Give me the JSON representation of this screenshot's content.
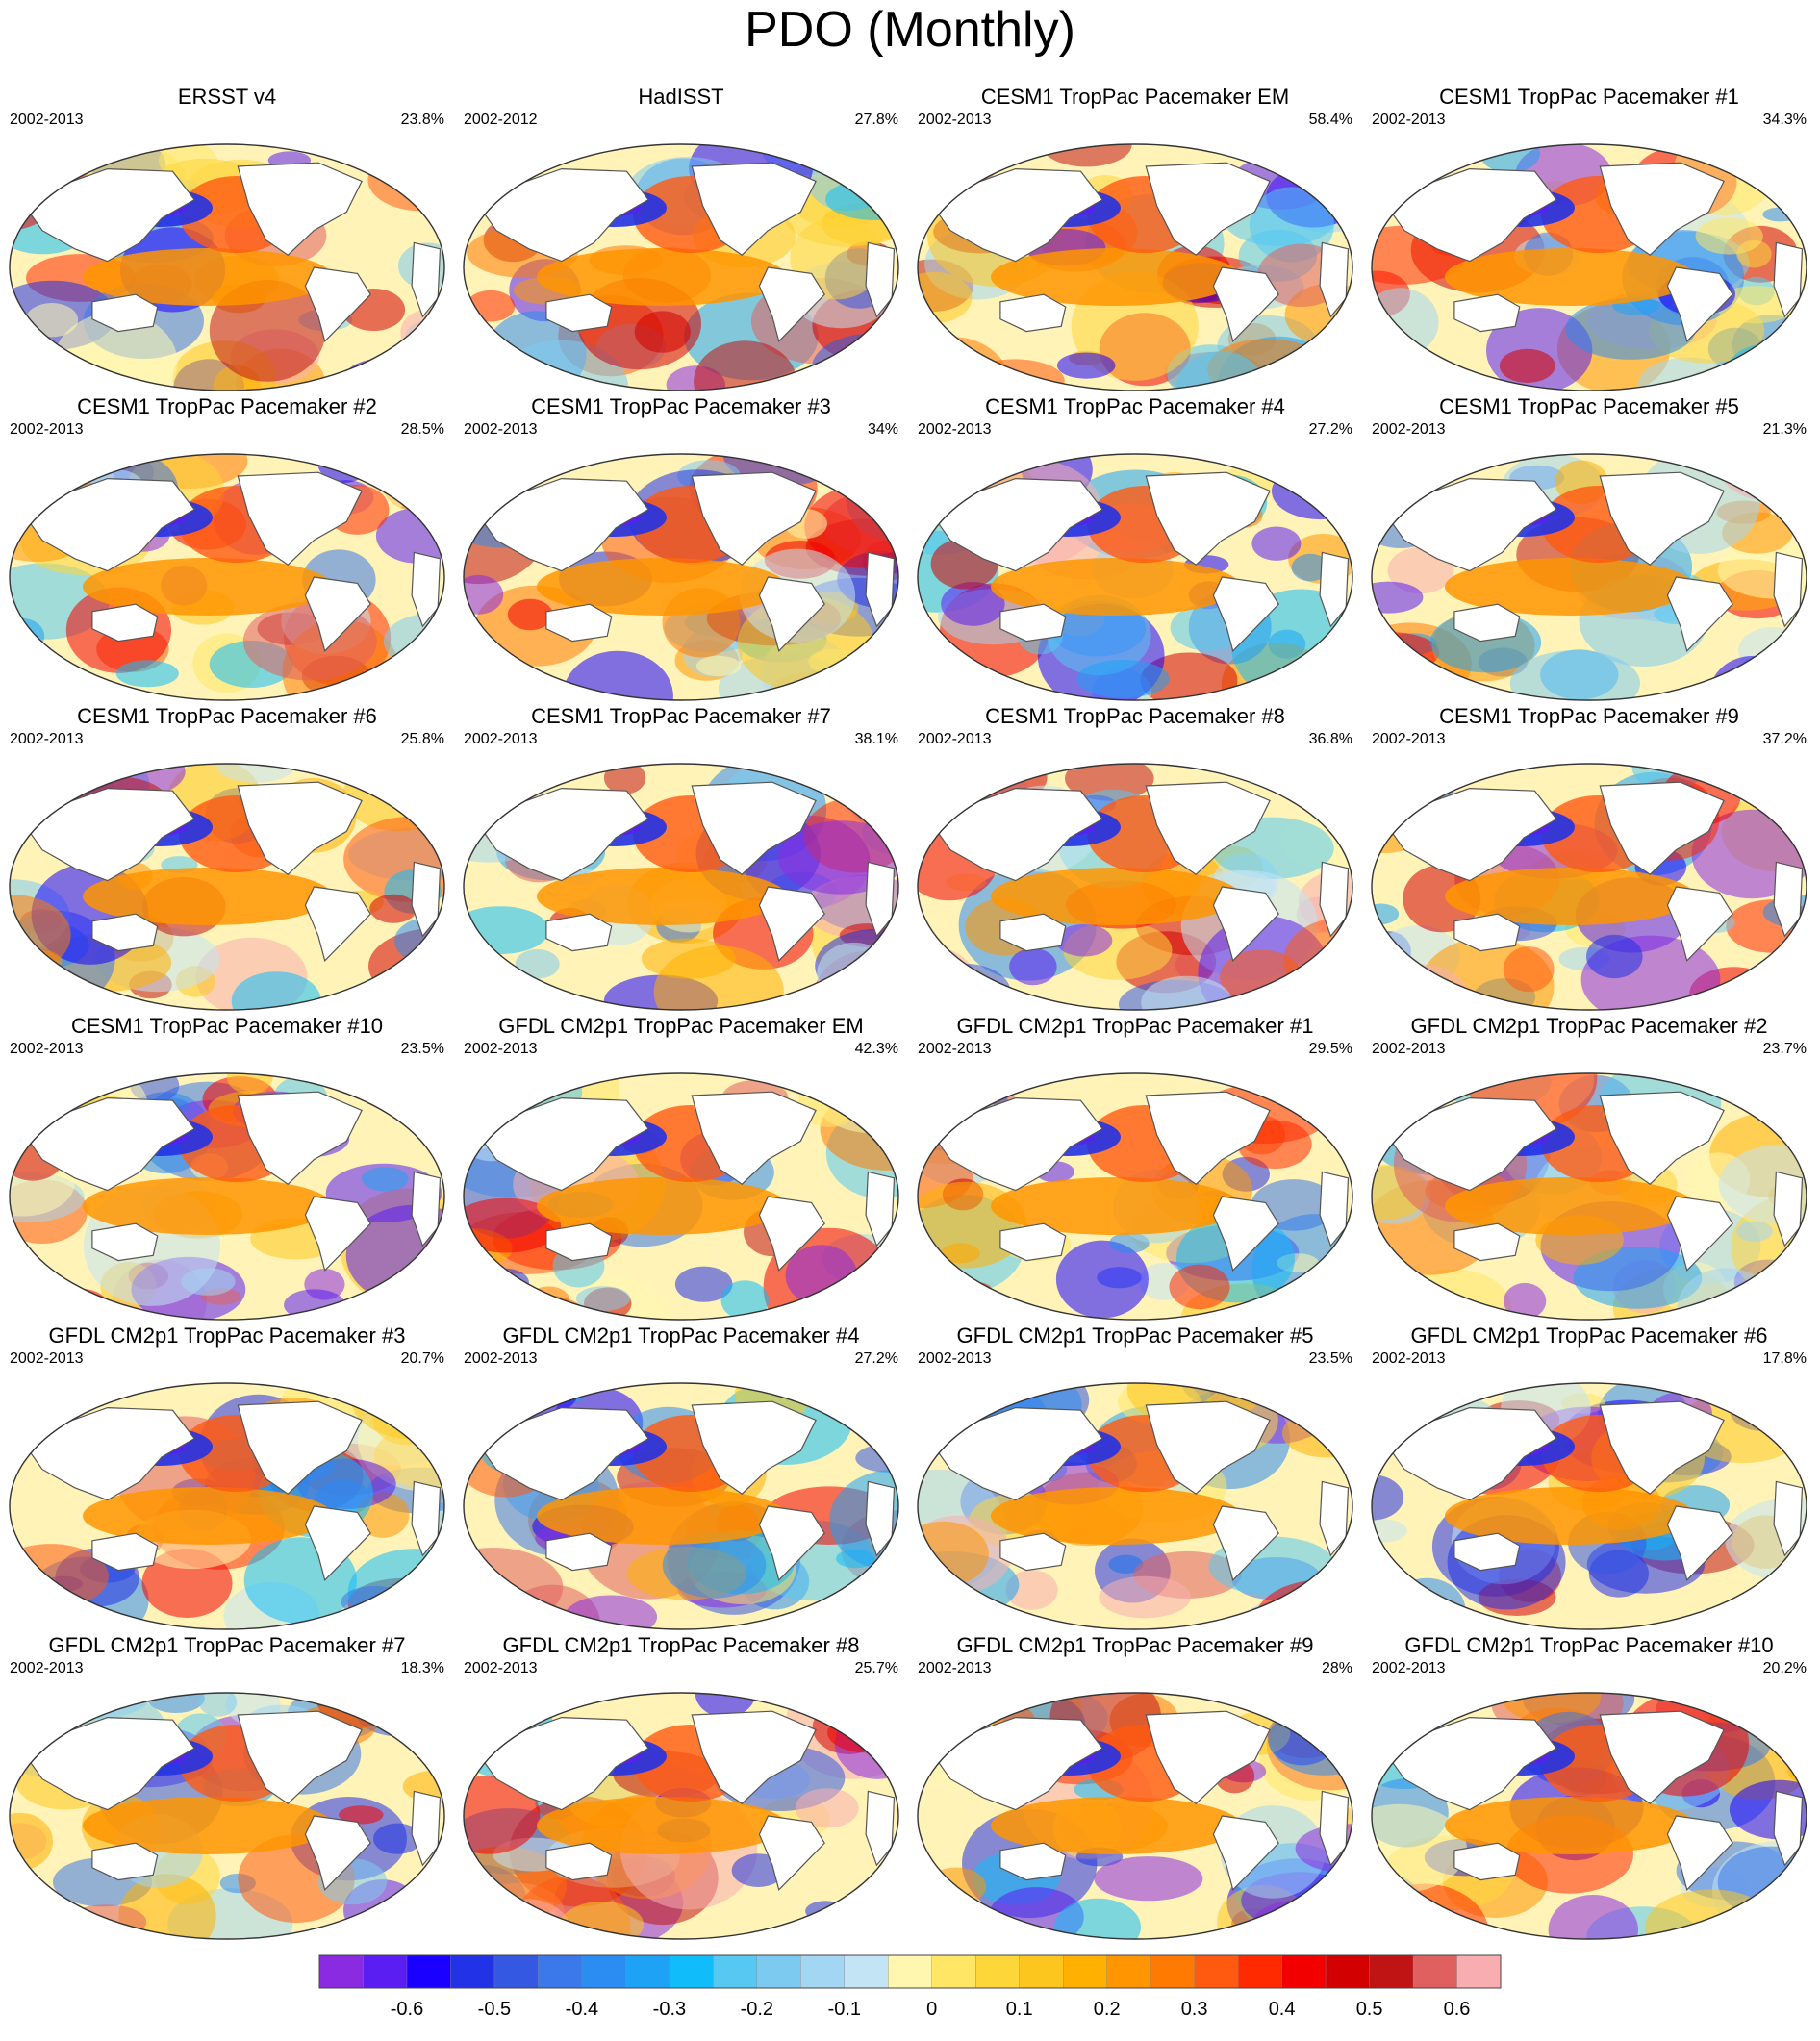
{
  "title": "PDO (Monthly)",
  "chart_data": {
    "type": "heatmap",
    "panels": [
      {
        "title": "ERSST v4",
        "period": "2002-2013",
        "variance_pct": "23.8%"
      },
      {
        "title": "HadISST",
        "period": "2002-2012",
        "variance_pct": "27.8%"
      },
      {
        "title": "CESM1 TropPac Pacemaker EM",
        "period": "2002-2013",
        "variance_pct": "58.4%"
      },
      {
        "title": "CESM1 TropPac Pacemaker #1",
        "period": "2002-2013",
        "variance_pct": "34.3%"
      },
      {
        "title": "CESM1 TropPac Pacemaker #2",
        "period": "2002-2013",
        "variance_pct": "28.5%"
      },
      {
        "title": "CESM1 TropPac Pacemaker #3",
        "period": "2002-2013",
        "variance_pct": "34%"
      },
      {
        "title": "CESM1 TropPac Pacemaker #4",
        "period": "2002-2013",
        "variance_pct": "27.2%"
      },
      {
        "title": "CESM1 TropPac Pacemaker #5",
        "period": "2002-2013",
        "variance_pct": "21.3%"
      },
      {
        "title": "CESM1 TropPac Pacemaker #6",
        "period": "2002-2013",
        "variance_pct": "25.8%"
      },
      {
        "title": "CESM1 TropPac Pacemaker #7",
        "period": "2002-2013",
        "variance_pct": "38.1%"
      },
      {
        "title": "CESM1 TropPac Pacemaker #8",
        "period": "2002-2013",
        "variance_pct": "36.8%"
      },
      {
        "title": "CESM1 TropPac Pacemaker #9",
        "period": "2002-2013",
        "variance_pct": "37.2%"
      },
      {
        "title": "CESM1 TropPac Pacemaker #10",
        "period": "2002-2013",
        "variance_pct": "23.5%"
      },
      {
        "title": "GFDL CM2p1 TropPac Pacemaker EM",
        "period": "2002-2013",
        "variance_pct": "42.3%"
      },
      {
        "title": "GFDL CM2p1 TropPac Pacemaker #1",
        "period": "2002-2013",
        "variance_pct": "29.5%"
      },
      {
        "title": "GFDL CM2p1 TropPac Pacemaker #2",
        "period": "2002-2013",
        "variance_pct": "23.7%"
      },
      {
        "title": "GFDL CM2p1 TropPac Pacemaker #3",
        "period": "2002-2013",
        "variance_pct": "20.7%"
      },
      {
        "title": "GFDL CM2p1 TropPac Pacemaker #4",
        "period": "2002-2013",
        "variance_pct": "27.2%"
      },
      {
        "title": "GFDL CM2p1 TropPac Pacemaker #5",
        "period": "2002-2013",
        "variance_pct": "23.5%"
      },
      {
        "title": "GFDL CM2p1 TropPac Pacemaker #6",
        "period": "2002-2013",
        "variance_pct": "17.8%"
      },
      {
        "title": "GFDL CM2p1 TropPac Pacemaker #7",
        "period": "2002-2013",
        "variance_pct": "18.3%"
      },
      {
        "title": "GFDL CM2p1 TropPac Pacemaker #8",
        "period": "2002-2013",
        "variance_pct": "25.7%"
      },
      {
        "title": "GFDL CM2p1 TropPac Pacemaker #9",
        "period": "2002-2013",
        "variance_pct": "28%"
      },
      {
        "title": "GFDL CM2p1 TropPac Pacemaker #10",
        "period": "2002-2013",
        "variance_pct": "20.2%"
      }
    ],
    "colorbar": {
      "tick_labels": [
        "-0.6",
        "-0.5",
        "-0.4",
        "-0.3",
        "-0.2",
        "-0.1",
        "0",
        "0.1",
        "0.2",
        "0.3",
        "0.4",
        "0.5",
        "0.6"
      ],
      "range": [
        -0.7,
        0.7
      ],
      "step": 0.05,
      "colors": [
        "#8a2be2",
        "#5a1ef2",
        "#1a00ff",
        "#2232e6",
        "#3558e2",
        "#3b78ea",
        "#2b8df2",
        "#1ea2f6",
        "#10bdfa",
        "#56c8f2",
        "#7dcaf0",
        "#a3d6f2",
        "#c3e4f4",
        "#fff7b0",
        "#ffe665",
        "#fdd63a",
        "#fdc61e",
        "#ffb000",
        "#ff9500",
        "#ff7a00",
        "#ff5a10",
        "#ff2a00",
        "#f20000",
        "#d20000",
        "#c01414",
        "#e06060",
        "#f8aeb0"
      ]
    }
  }
}
